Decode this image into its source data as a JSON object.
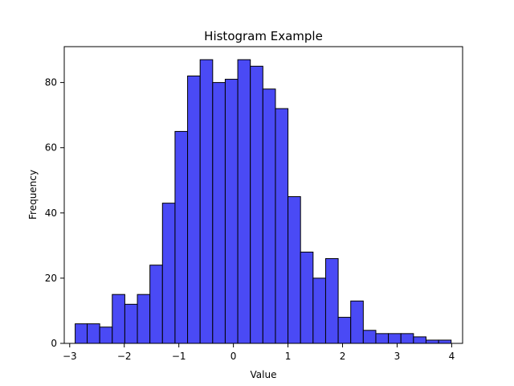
{
  "chart_data": {
    "type": "bar",
    "title": "Histogram Example",
    "xlabel": "Value",
    "ylabel": "Frequency",
    "bar_color": "#4a4af5",
    "edge_color": "#000000",
    "xlim": [
      -3.1,
      4.2
    ],
    "ylim": [
      0,
      91
    ],
    "xticks": [
      -3,
      -2,
      -1,
      0,
      1,
      2,
      3,
      4
    ],
    "yticks": [
      0,
      20,
      40,
      60,
      80
    ],
    "bins": [
      {
        "start": -2.9,
        "end": -2.68,
        "count": 6
      },
      {
        "start": -2.68,
        "end": -2.45,
        "count": 6
      },
      {
        "start": -2.45,
        "end": -2.22,
        "count": 5
      },
      {
        "start": -2.22,
        "end": -1.99,
        "count": 15
      },
      {
        "start": -1.99,
        "end": -1.76,
        "count": 12
      },
      {
        "start": -1.76,
        "end": -1.53,
        "count": 15
      },
      {
        "start": -1.53,
        "end": -1.3,
        "count": 24
      },
      {
        "start": -1.3,
        "end": -1.07,
        "count": 43
      },
      {
        "start": -1.07,
        "end": -0.84,
        "count": 65
      },
      {
        "start": -0.84,
        "end": -0.61,
        "count": 82
      },
      {
        "start": -0.61,
        "end": -0.38,
        "count": 87
      },
      {
        "start": -0.38,
        "end": -0.15,
        "count": 80
      },
      {
        "start": -0.15,
        "end": 0.08,
        "count": 81
      },
      {
        "start": 0.08,
        "end": 0.31,
        "count": 87
      },
      {
        "start": 0.31,
        "end": 0.54,
        "count": 85
      },
      {
        "start": 0.54,
        "end": 0.77,
        "count": 78
      },
      {
        "start": 0.77,
        "end": 1.0,
        "count": 72
      },
      {
        "start": 1.0,
        "end": 1.23,
        "count": 45
      },
      {
        "start": 1.23,
        "end": 1.46,
        "count": 28
      },
      {
        "start": 1.46,
        "end": 1.69,
        "count": 20
      },
      {
        "start": 1.69,
        "end": 1.92,
        "count": 26
      },
      {
        "start": 1.92,
        "end": 2.15,
        "count": 8
      },
      {
        "start": 2.15,
        "end": 2.38,
        "count": 13
      },
      {
        "start": 2.38,
        "end": 2.61,
        "count": 4
      },
      {
        "start": 2.61,
        "end": 2.84,
        "count": 3
      },
      {
        "start": 2.84,
        "end": 3.07,
        "count": 3
      },
      {
        "start": 3.07,
        "end": 3.3,
        "count": 3
      },
      {
        "start": 3.3,
        "end": 3.53,
        "count": 2
      },
      {
        "start": 3.53,
        "end": 3.76,
        "count": 1
      },
      {
        "start": 3.76,
        "end": 3.99,
        "count": 1
      }
    ]
  }
}
